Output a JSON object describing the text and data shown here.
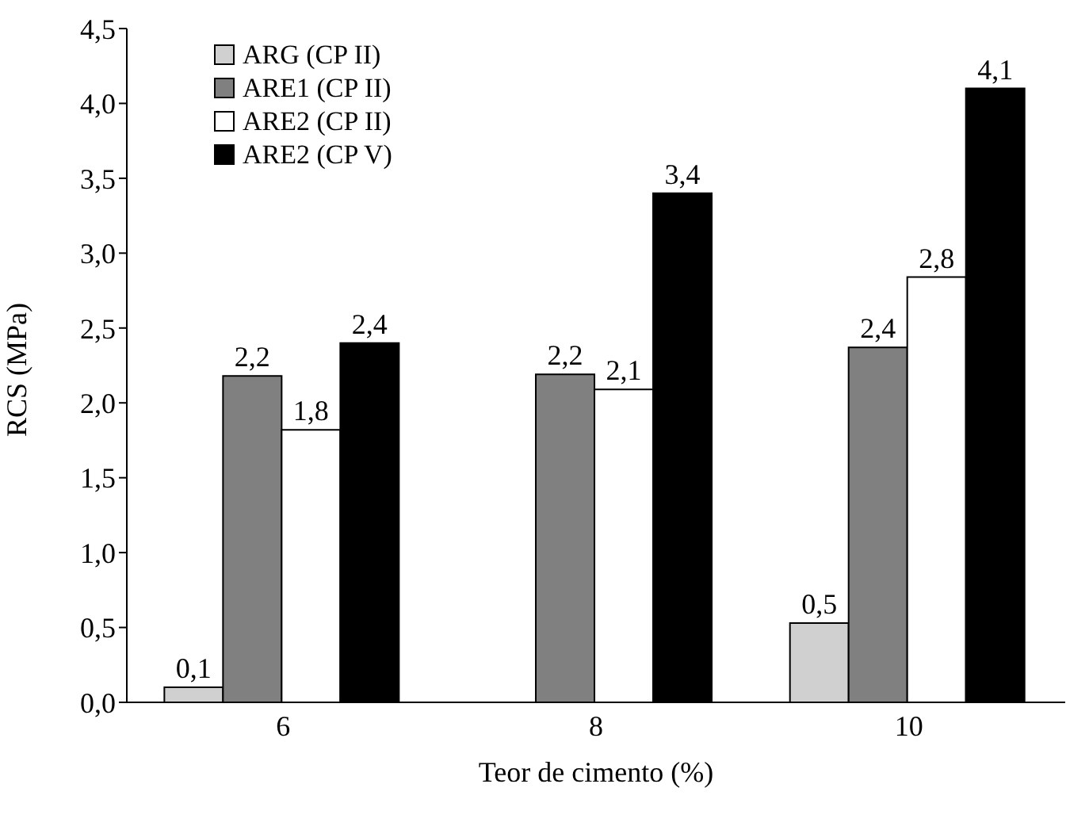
{
  "chart_data": {
    "type": "bar",
    "xlabel": "Teor de cimento (%)",
    "ylabel": "RCS (MPa)",
    "categories": [
      "6",
      "8",
      "10"
    ],
    "series": [
      {
        "name": "ARG (CP II)",
        "color": "#d0d0d0",
        "values": [
          0.1,
          null,
          0.53
        ],
        "value_labels": [
          "0,1",
          null,
          "0,5"
        ]
      },
      {
        "name": "ARE1 (CP II)",
        "color": "#808080",
        "values": [
          2.18,
          2.19,
          2.37
        ],
        "value_labels": [
          "2,2",
          "2,2",
          "2,4"
        ]
      },
      {
        "name": "ARE2 (CP II)",
        "color": "#ffffff",
        "values": [
          1.82,
          2.09,
          2.84
        ],
        "value_labels": [
          "1,8",
          "2,1",
          "2,8"
        ]
      },
      {
        "name": "ARE2 (CP V)",
        "color": "#000000",
        "values": [
          2.4,
          3.4,
          4.1
        ],
        "value_labels": [
          "2,4",
          "3,4",
          "4,1"
        ]
      }
    ],
    "ylim": [
      0,
      4.5
    ],
    "yticks": [
      {
        "value": 0,
        "label": "0,0"
      },
      {
        "value": 0.5,
        "label": "0,5"
      },
      {
        "value": 1,
        "label": "1,0"
      },
      {
        "value": 1.5,
        "label": "1,5"
      },
      {
        "value": 2,
        "label": "2,0"
      },
      {
        "value": 2.5,
        "label": "2,5"
      },
      {
        "value": 3,
        "label": "3,0"
      },
      {
        "value": 3.5,
        "label": "3,5"
      },
      {
        "value": 4,
        "label": "4,0"
      },
      {
        "value": 4.5,
        "label": "4,5"
      }
    ],
    "grid": false,
    "legend": "top left"
  }
}
